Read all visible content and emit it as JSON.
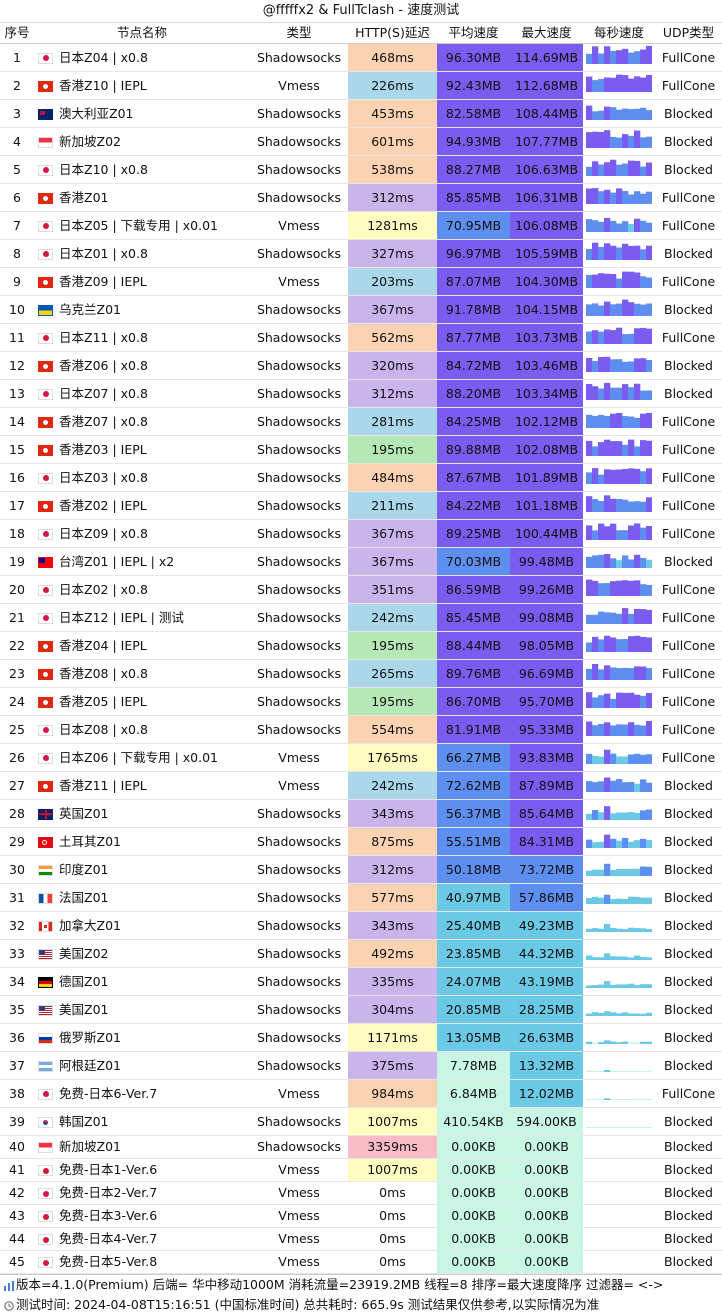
{
  "title": "@fffffx2 & FullTclash - 速度测试",
  "headers": [
    "序号",
    "节点名称",
    "类型",
    "HTTP(S)延迟",
    "平均速度",
    "最大速度",
    "每秒速度",
    "UDP类型"
  ],
  "rows": [
    [
      "1",
      "jp",
      "日本Z04 | x0.8",
      "Shadowsocks",
      "468ms",
      "96.30MB",
      "114.69MB",
      "FullCone"
    ],
    [
      "2",
      "hk",
      "香港Z10 | IEPL",
      "Vmess",
      "226ms",
      "92.43MB",
      "112.68MB",
      "FullCone"
    ],
    [
      "3",
      "au",
      "澳大利亚Z01",
      "Shadowsocks",
      "453ms",
      "82.58MB",
      "108.44MB",
      "Blocked"
    ],
    [
      "4",
      "sg",
      "新加坡Z02",
      "Shadowsocks",
      "601ms",
      "94.93MB",
      "107.77MB",
      "Blocked"
    ],
    [
      "5",
      "jp",
      "日本Z10 | x0.8",
      "Shadowsocks",
      "538ms",
      "88.27MB",
      "106.63MB",
      "Blocked"
    ],
    [
      "6",
      "hk",
      "香港Z01",
      "Shadowsocks",
      "312ms",
      "85.85MB",
      "106.31MB",
      "FullCone"
    ],
    [
      "7",
      "jp",
      "日本Z05 | 下载专用 | x0.01",
      "Vmess",
      "1281ms",
      "70.95MB",
      "106.08MB",
      "FullCone"
    ],
    [
      "8",
      "jp",
      "日本Z01 | x0.8",
      "Shadowsocks",
      "327ms",
      "96.97MB",
      "105.59MB",
      "Blocked"
    ],
    [
      "9",
      "hk",
      "香港Z09 | IEPL",
      "Vmess",
      "203ms",
      "87.07MB",
      "104.30MB",
      "FullCone"
    ],
    [
      "10",
      "ua",
      "乌克兰Z01",
      "Shadowsocks",
      "367ms",
      "91.78MB",
      "104.15MB",
      "Blocked"
    ],
    [
      "11",
      "jp",
      "日本Z11 | x0.8",
      "Shadowsocks",
      "562ms",
      "87.77MB",
      "103.73MB",
      "FullCone"
    ],
    [
      "12",
      "hk",
      "香港Z06 | x0.8",
      "Shadowsocks",
      "320ms",
      "84.72MB",
      "103.46MB",
      "Blocked"
    ],
    [
      "13",
      "jp",
      "日本Z07 | x0.8",
      "Shadowsocks",
      "312ms",
      "88.20MB",
      "103.34MB",
      "Blocked"
    ],
    [
      "14",
      "hk",
      "香港Z07 | x0.8",
      "Shadowsocks",
      "281ms",
      "84.25MB",
      "102.12MB",
      "FullCone"
    ],
    [
      "15",
      "hk",
      "香港Z03 | IEPL",
      "Shadowsocks",
      "195ms",
      "89.88MB",
      "102.08MB",
      "FullCone"
    ],
    [
      "16",
      "jp",
      "日本Z03 | x0.8",
      "Shadowsocks",
      "484ms",
      "87.67MB",
      "101.89MB",
      "FullCone"
    ],
    [
      "17",
      "hk",
      "香港Z02 | IEPL",
      "Shadowsocks",
      "211ms",
      "84.22MB",
      "101.18MB",
      "FullCone"
    ],
    [
      "18",
      "jp",
      "日本Z09 | x0.8",
      "Shadowsocks",
      "367ms",
      "89.25MB",
      "100.44MB",
      "FullCone"
    ],
    [
      "19",
      "tw",
      "台湾Z01 | IEPL | x2",
      "Shadowsocks",
      "367ms",
      "70.03MB",
      "99.48MB",
      "Blocked"
    ],
    [
      "20",
      "jp",
      "日本Z02 | x0.8",
      "Shadowsocks",
      "351ms",
      "86.59MB",
      "99.26MB",
      "FullCone"
    ],
    [
      "21",
      "jp",
      "日本Z12 | IEPL | 测试",
      "Shadowsocks",
      "242ms",
      "85.45MB",
      "99.08MB",
      "FullCone"
    ],
    [
      "22",
      "hk",
      "香港Z04 | IEPL",
      "Shadowsocks",
      "195ms",
      "88.44MB",
      "98.05MB",
      "FullCone"
    ],
    [
      "23",
      "hk",
      "香港Z08 | x0.8",
      "Shadowsocks",
      "265ms",
      "89.76MB",
      "96.69MB",
      "FullCone"
    ],
    [
      "24",
      "hk",
      "香港Z05 | IEPL",
      "Shadowsocks",
      "195ms",
      "86.70MB",
      "95.70MB",
      "FullCone"
    ],
    [
      "25",
      "jp",
      "日本Z08 | x0.8",
      "Shadowsocks",
      "554ms",
      "81.91MB",
      "95.33MB",
      "FullCone"
    ],
    [
      "26",
      "jp",
      "日本Z06 | 下载专用 | x0.01",
      "Vmess",
      "1765ms",
      "66.27MB",
      "93.83MB",
      "FullCone"
    ],
    [
      "27",
      "hk",
      "香港Z11 | IEPL",
      "Vmess",
      "242ms",
      "72.62MB",
      "87.89MB",
      "Blocked"
    ],
    [
      "28",
      "gb",
      "英国Z01",
      "Shadowsocks",
      "343ms",
      "56.37MB",
      "85.64MB",
      "Blocked"
    ],
    [
      "29",
      "tr",
      "土耳其Z01",
      "Shadowsocks",
      "875ms",
      "55.51MB",
      "84.31MB",
      "Blocked"
    ],
    [
      "30",
      "in",
      "印度Z01",
      "Shadowsocks",
      "312ms",
      "50.18MB",
      "73.72MB",
      "Blocked"
    ],
    [
      "31",
      "fr",
      "法国Z01",
      "Shadowsocks",
      "577ms",
      "40.97MB",
      "57.86MB",
      "Blocked"
    ],
    [
      "32",
      "ca",
      "加拿大Z01",
      "Shadowsocks",
      "343ms",
      "25.40MB",
      "49.23MB",
      "Blocked"
    ],
    [
      "33",
      "us",
      "美国Z02",
      "Shadowsocks",
      "492ms",
      "23.85MB",
      "44.32MB",
      "Blocked"
    ],
    [
      "34",
      "de",
      "德国Z01",
      "Shadowsocks",
      "335ms",
      "24.07MB",
      "43.19MB",
      "Blocked"
    ],
    [
      "35",
      "us",
      "美国Z01",
      "Shadowsocks",
      "304ms",
      "20.85MB",
      "28.25MB",
      "Blocked"
    ],
    [
      "36",
      "ru",
      "俄罗斯Z01",
      "Shadowsocks",
      "1171ms",
      "13.05MB",
      "26.63MB",
      "Blocked"
    ],
    [
      "37",
      "ar",
      "阿根廷Z01",
      "Shadowsocks",
      "375ms",
      "7.78MB",
      "13.32MB",
      "Blocked"
    ],
    [
      "38",
      "jp",
      "免费-日本6-Ver.7",
      "Vmess",
      "984ms",
      "6.84MB",
      "12.02MB",
      "FullCone"
    ],
    [
      "39",
      "kr",
      "韩国Z01",
      "Shadowsocks",
      "1007ms",
      "410.54KB",
      "594.00KB",
      "Blocked"
    ],
    [
      "40",
      "sg",
      "新加坡Z01",
      "Shadowsocks",
      "3359ms",
      "0.00KB",
      "0.00KB",
      "Blocked"
    ],
    [
      "41",
      "jp",
      "免费-日本1-Ver.6",
      "Vmess",
      "1007ms",
      "0.00KB",
      "0.00KB",
      "Blocked"
    ],
    [
      "42",
      "jp",
      "免费-日本2-Ver.7",
      "Vmess",
      "0ms",
      "0.00KB",
      "0.00KB",
      "Blocked"
    ],
    [
      "43",
      "jp",
      "免费-日本3-Ver.6",
      "Vmess",
      "0ms",
      "0.00KB",
      "0.00KB",
      "Blocked"
    ],
    [
      "44",
      "jp",
      "免费-日本4-Ver.7",
      "Vmess",
      "0ms",
      "0.00KB",
      "0.00KB",
      "Blocked"
    ],
    [
      "45",
      "jp",
      "免费-日本5-Ver.8",
      "Vmess",
      "0ms",
      "0.00KB",
      "0.00KB",
      "Blocked"
    ]
  ],
  "footer": {
    "line1": "版本=4.1.0(Premium)  后端= 华中移动1000M  消耗流量=23919.2MB  线程=8  排序=最大速度降序  过滤器= <->",
    "line2": "测试时间: 2024-04-08T15:16:51 (中国标准时间) 总共耗时: 665.9s 测试结果仅供参考,以实际情况为准"
  },
  "colors": {
    "latency_good": "#b5e8b5",
    "latency_ok": "#aad8ea",
    "latency_mid": "#c9b4ec",
    "latency_slow": "#fbd3b3",
    "latency_vslow": "#fefcc0",
    "latency_bad": "#f9bcc7",
    "speed_high": "#7b5cf0",
    "speed_mid": "#5d8ef0",
    "speed_low": "#6cc9e6",
    "speed_zero": "#c9f5e4"
  }
}
